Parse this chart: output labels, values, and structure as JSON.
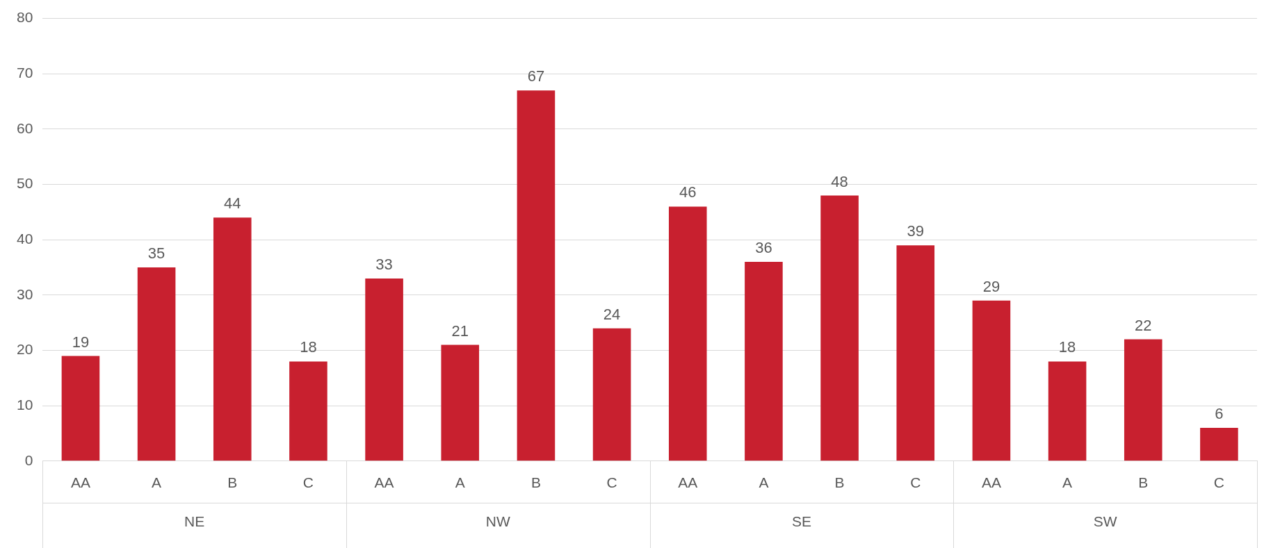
{
  "chart_data": {
    "type": "bar",
    "categories": [
      "AA",
      "A",
      "B",
      "C",
      "AA",
      "A",
      "B",
      "C",
      "AA",
      "A",
      "B",
      "C",
      "AA",
      "A",
      "B",
      "C"
    ],
    "values": [
      19,
      35,
      44,
      18,
      33,
      21,
      67,
      24,
      46,
      36,
      48,
      39,
      29,
      18,
      22,
      6
    ],
    "color": "#c8202f",
    "annotations": [
      "NE",
      "NW",
      "SE",
      "SW"
    ],
    "ylim": [
      0,
      80
    ],
    "yticks": [
      0,
      10,
      20,
      30,
      40,
      50,
      60,
      70,
      80
    ],
    "grid": "y",
    "data_labels": true,
    "legend": false
  }
}
